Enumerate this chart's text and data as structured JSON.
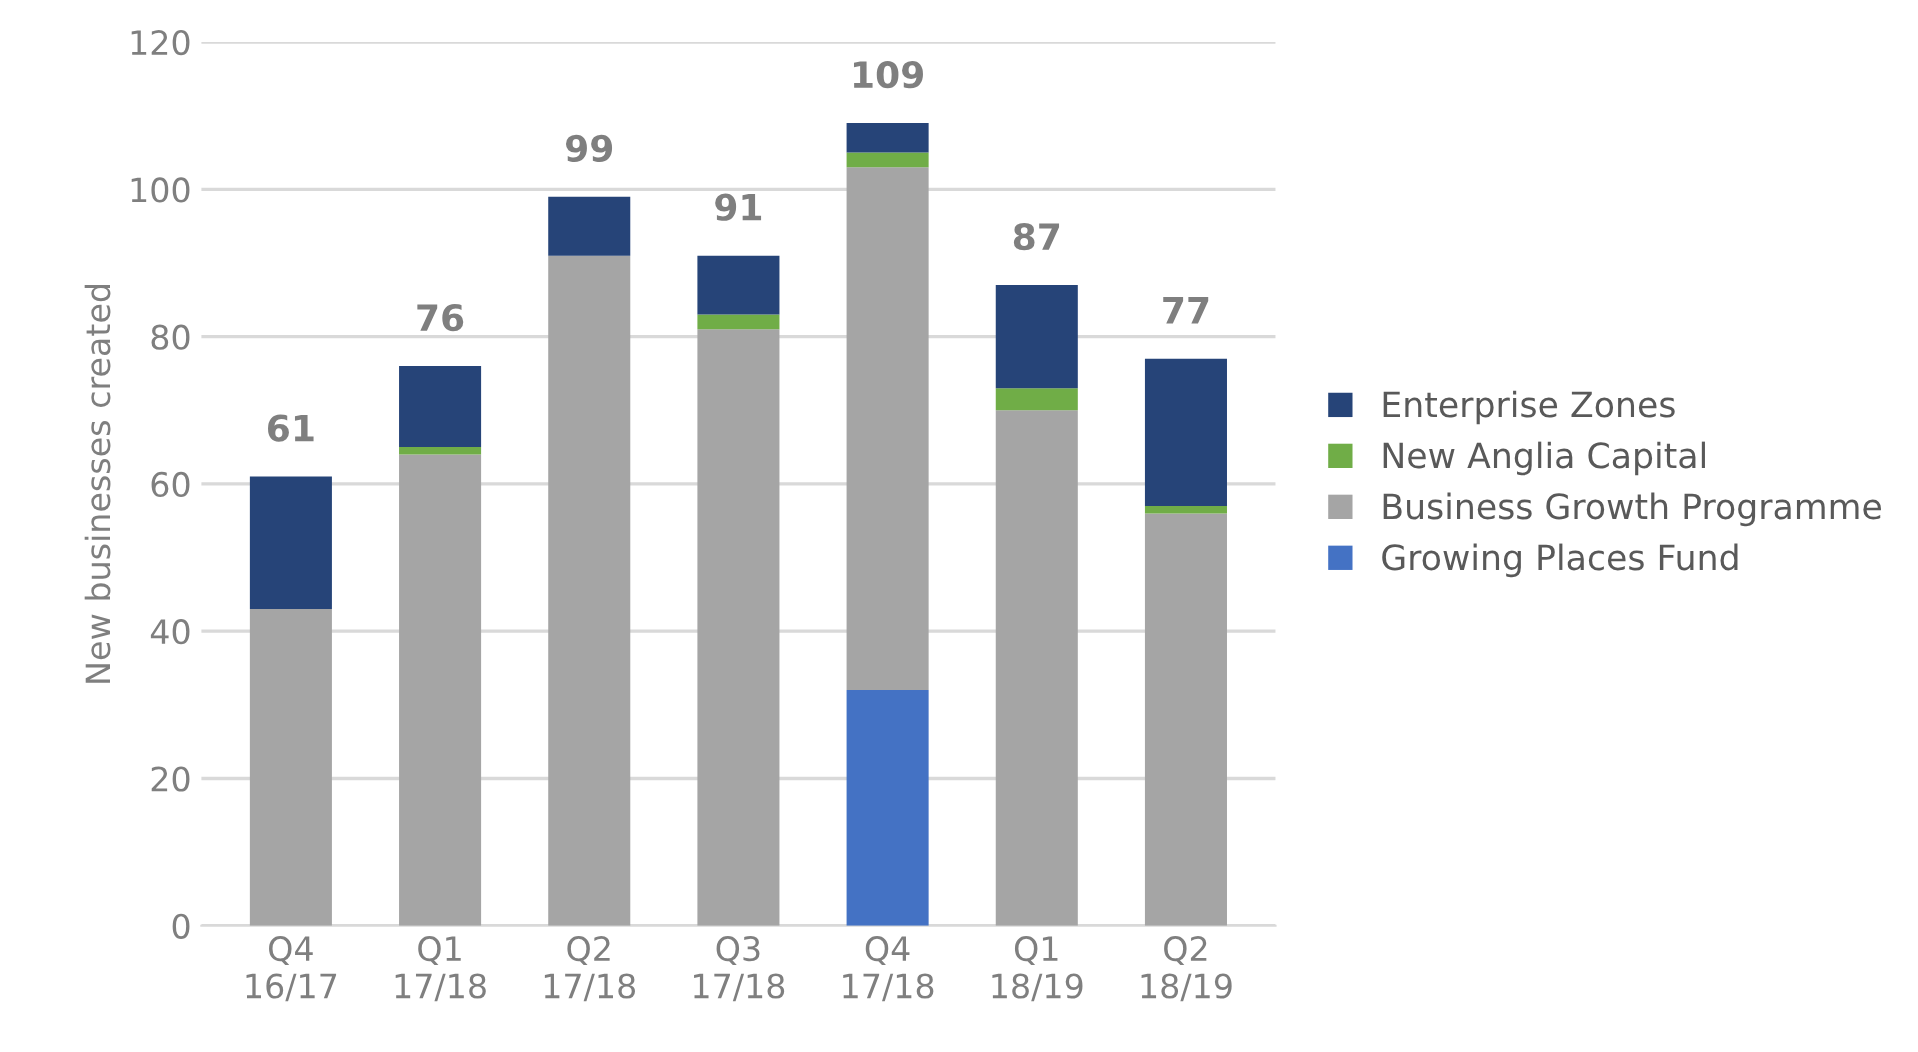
{
  "chart_data": {
    "type": "bar",
    "stacked": true,
    "ylabel": "New businesses created",
    "categories": [
      "Q4\n16/17",
      "Q1\n17/18",
      "Q2\n17/18",
      "Q3\n17/18",
      "Q4\n17/18",
      "Q1\n18/19",
      "Q2\n18/19"
    ],
    "series": [
      {
        "name": "Growing Places Fund",
        "color": "#4472c4",
        "values": [
          0,
          0,
          0,
          0,
          32,
          0,
          0
        ]
      },
      {
        "name": "Business Growth Programme",
        "color": "#a5a5a5",
        "values": [
          43,
          64,
          91,
          81,
          71,
          70,
          56
        ]
      },
      {
        "name": "New Anglia Capital",
        "color": "#70ad47",
        "values": [
          0,
          1,
          0,
          2,
          2,
          3,
          1
        ]
      },
      {
        "name": "Enterprise Zones",
        "color": "#264478",
        "values": [
          18,
          11,
          8,
          8,
          4,
          14,
          20
        ]
      }
    ],
    "totals": [
      "61",
      "76",
      "99",
      "91",
      "109",
      "87",
      "77"
    ],
    "ylim": [
      0,
      120
    ],
    "yticks": [
      0,
      20,
      40,
      60,
      80,
      100,
      120
    ],
    "grid": "y",
    "legend": "right"
  }
}
